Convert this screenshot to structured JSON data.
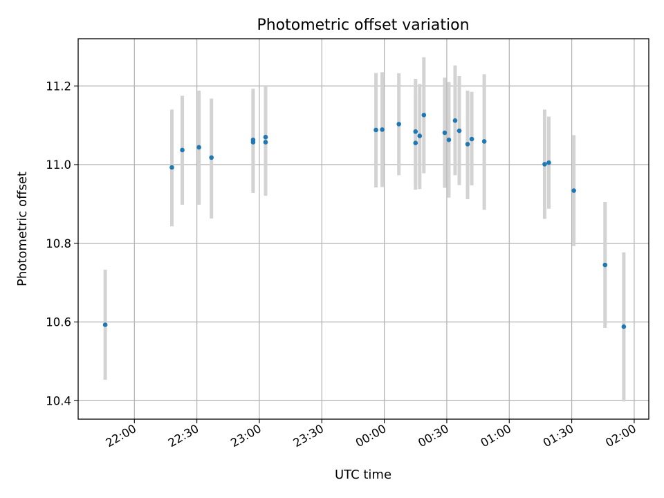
{
  "chart_data": {
    "type": "scatter",
    "title": "Photometric offset variation",
    "xlabel": "UTC time",
    "ylabel": "Photometric offset",
    "xlim": [
      "21:33",
      "02:07"
    ],
    "ylim": [
      10.353,
      11.32
    ],
    "grid": true,
    "colors": {
      "point": "#1f77b4",
      "errorbar": "#d3d3d3"
    },
    "x_ticks": [
      "22:00",
      "22:30",
      "23:00",
      "23:30",
      "00:00",
      "00:30",
      "01:00",
      "01:30",
      "02:00"
    ],
    "y_ticks": [
      "10.4",
      "10.6",
      "10.8",
      "11.0",
      "11.2"
    ],
    "series": [
      {
        "points": [
          {
            "x": "21:46",
            "y": 10.593,
            "ylow": 10.453,
            "yhigh": 10.733
          },
          {
            "x": "22:18",
            "y": 10.993,
            "ylow": 10.843,
            "yhigh": 11.14
          },
          {
            "x": "22:23",
            "y": 11.037,
            "ylow": 10.898,
            "yhigh": 11.175
          },
          {
            "x": "22:31",
            "y": 11.044,
            "ylow": 10.898,
            "yhigh": 11.188
          },
          {
            "x": "22:37",
            "y": 11.018,
            "ylow": 10.863,
            "yhigh": 11.168
          },
          {
            "x": "22:57",
            "y": 11.057,
            "ylow": 10.928,
            "yhigh": 11.186
          },
          {
            "x": "22:57",
            "y": 11.063,
            "ylow": 10.933,
            "yhigh": 11.193
          },
          {
            "x": "23:03",
            "y": 11.07,
            "ylow": 10.94,
            "yhigh": 11.198
          },
          {
            "x": "23:03",
            "y": 11.057,
            "ylow": 10.921,
            "yhigh": 11.193
          },
          {
            "x": "23:56",
            "y": 11.088,
            "ylow": 10.942,
            "yhigh": 11.233
          },
          {
            "x": "23:59",
            "y": 11.089,
            "ylow": 10.943,
            "yhigh": 11.235
          },
          {
            "x": "00:07",
            "y": 11.103,
            "ylow": 10.973,
            "yhigh": 11.232
          },
          {
            "x": "00:15",
            "y": 11.084,
            "ylow": 10.95,
            "yhigh": 11.218
          },
          {
            "x": "00:15",
            "y": 11.055,
            "ylow": 10.936,
            "yhigh": 11.175
          },
          {
            "x": "00:17",
            "y": 11.073,
            "ylow": 10.938,
            "yhigh": 11.205
          },
          {
            "x": "00:19",
            "y": 11.126,
            "ylow": 10.978,
            "yhigh": 11.273
          },
          {
            "x": "00:29",
            "y": 11.081,
            "ylow": 10.941,
            "yhigh": 11.221
          },
          {
            "x": "00:31",
            "y": 11.063,
            "ylow": 10.916,
            "yhigh": 11.21
          },
          {
            "x": "00:34",
            "y": 11.112,
            "ylow": 10.973,
            "yhigh": 11.252
          },
          {
            "x": "00:36",
            "y": 11.086,
            "ylow": 10.948,
            "yhigh": 11.225
          },
          {
            "x": "00:40",
            "y": 11.052,
            "ylow": 10.912,
            "yhigh": 11.188
          },
          {
            "x": "00:42",
            "y": 11.065,
            "ylow": 10.947,
            "yhigh": 11.185
          },
          {
            "x": "00:48",
            "y": 11.059,
            "ylow": 10.885,
            "yhigh": 11.23
          },
          {
            "x": "01:17",
            "y": 11.001,
            "ylow": 10.862,
            "yhigh": 11.14
          },
          {
            "x": "01:19",
            "y": 11.005,
            "ylow": 10.888,
            "yhigh": 11.122
          },
          {
            "x": "01:31",
            "y": 10.934,
            "ylow": 10.793,
            "yhigh": 11.075
          },
          {
            "x": "01:46",
            "y": 10.745,
            "ylow": 10.585,
            "yhigh": 10.905
          },
          {
            "x": "01:55",
            "y": 10.588,
            "ylow": 10.398,
            "yhigh": 10.777
          }
        ]
      }
    ]
  }
}
